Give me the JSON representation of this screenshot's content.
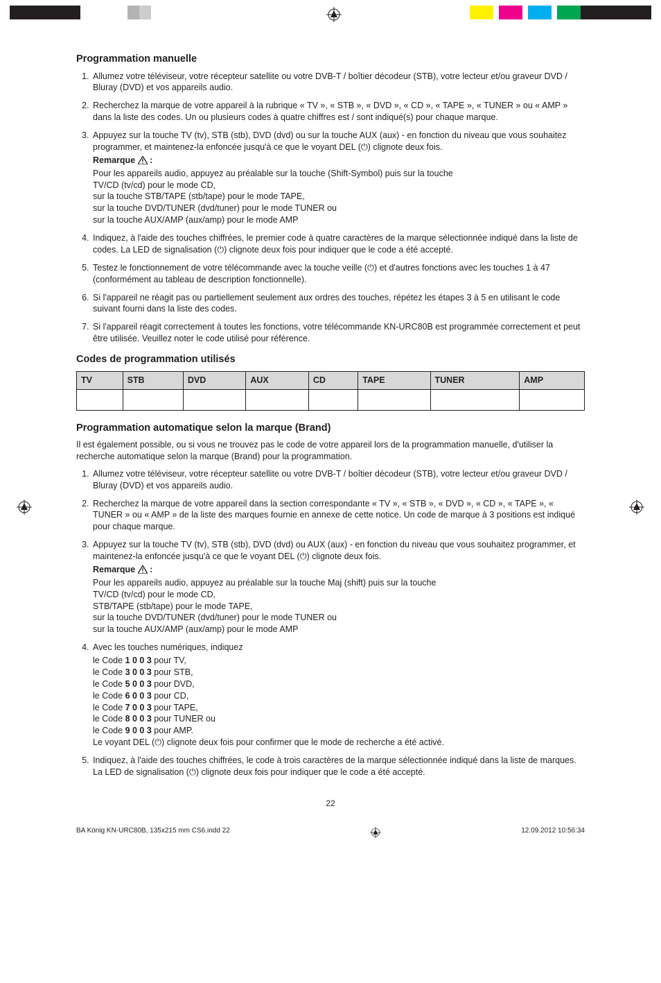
{
  "registration": {
    "left_colors": [
      "#231f20",
      "#231f20",
      "#231f20",
      "#ffffff",
      "#ffffff",
      "#b3b3b3",
      "#cccccc",
      "#ffffff",
      "#ffffff"
    ],
    "right_colors": [
      "#fff200",
      "#ffffff",
      "#ec008c",
      "#ffffff",
      "#00aeef",
      "#ffffff",
      "#00a651",
      "#231f20",
      "#231f20",
      "#231f20"
    ]
  },
  "section1": {
    "heading": "Programmation manuelle",
    "items": [
      "Allumez votre téléviseur, votre récepteur satellite ou votre DVB-T / boîtier décodeur (STB), votre lecteur et/ou graveur DVD / Bluray (DVD) et vos appareils audio.",
      "Recherchez la marque de votre appareil à la rubrique « TV », « STB », « DVD », « CD », « TAPE », « TUNER » ou « AMP » dans la liste des codes. Un ou plusieurs codes à quatre chiffres est / sont indiqué(s) pour chaque marque.",
      "Appuyez sur la touche TV (tv), STB (stb), DVD (dvd) ou sur la touche AUX (aux) - en fonction du niveau que vous souhaitez programmer, et maintenez-la enfoncée jusqu'à ce que le voyant DEL (⏻) clignote deux fois.",
      "Indiquez, à l'aide des touches chiffrées, le premier code à quatre caractères de la marque sélectionnée indiqué dans la liste de codes. La LED de signalisation (⏻) clignote deux fois pour indiquer que le code a été accepté.",
      "Testez le fonctionnement de votre télécommande avec la touche veille (⏻) et d'autres fonctions avec les touches 1 à 47 (conformément au tableau de description fonctionnelle).",
      "Si l'appareil ne réagit pas ou partiellement seulement aux ordres des touches, répétez les étapes 3 à 5 en utilisant le code suivant fourni dans la liste des codes.",
      "Si l'appareil réagit correctement à toutes les fonctions, votre télécommande KN-URC80B est programmée correctement et peut être utilisée. Veuillez noter le code utilisé pour référence."
    ],
    "note_label": "Remarque",
    "note_lines": [
      "Pour les appareils audio, appuyez au préalable sur la touche (Shift-Symbol) puis sur la touche",
      "TV/CD (tv/cd) pour le mode CD,",
      "sur la touche STB/TAPE (stb/tape) pour le mode TAPE,",
      "sur la touche DVD/TUNER (dvd/tuner) pour le mode TUNER ou",
      "sur la touche AUX/AMP (aux/amp) pour le mode AMP"
    ]
  },
  "codes_table": {
    "heading": "Codes de programmation utilisés",
    "headers": [
      "TV",
      "STB",
      "DVD",
      "AUX",
      "CD",
      "TAPE",
      "TUNER",
      "AMP"
    ]
  },
  "section2": {
    "heading": "Programmation automatique selon la marque (Brand)",
    "intro": "Il est également possible, ou si vous ne trouvez pas le code de votre appareil lors de la programmation manuelle, d'utiliser la recherche automatique selon la marque (Brand) pour la programmation.",
    "items": [
      "Allumez votre téléviseur, votre récepteur satellite ou votre DVB-T / boîtier décodeur (STB), votre lecteur et/ou graveur DVD / Bluray (DVD) et vos appareils audio.",
      "Recherchez la marque de votre appareil dans la section correspondante « TV », « STB », « DVD », « CD », « TAPE », « TUNER » ou « AMP » de la liste des marques fournie en annexe de cette notice. Un code de marque à 3 positions est indiqué pour chaque marque.",
      "Appuyez sur la touche TV (tv), STB (stb), DVD (dvd) ou AUX (aux) - en fonction du niveau que vous souhaitez programmer, et maintenez-la enfoncée jusqu'à ce que le voyant DEL (⏻) clignote deux fois.",
      "Avec les touches numériques, indiquez",
      "Indiquez, à l'aide des touches chiffrées, le code à trois caractères de la marque sélectionnée indiqué dans la liste de marques. La LED de signalisation (⏻) clignote deux fois pour indiquer que le code a été accepté."
    ],
    "note_label": "Remarque",
    "note_lines": [
      "Pour les appareils audio, appuyez au préalable sur la touche Maj (shift) puis sur la touche",
      "TV/CD (tv/cd) pour le mode CD,",
      "STB/TAPE (stb/tape) pour le mode TAPE,",
      "sur la touche DVD/TUNER (dvd/tuner) pour le mode TUNER ou",
      "sur la touche AUX/AMP (aux/amp) pour le mode AMP"
    ],
    "codes_list": [
      {
        "pre": "le Code ",
        "code": "1 0 0 3",
        "post": " pour TV,"
      },
      {
        "pre": "le Code ",
        "code": "3 0 0 3",
        "post": " pour STB,"
      },
      {
        "pre": "le Code ",
        "code": "5 0 0 3",
        "post": " pour DVD,"
      },
      {
        "pre": "le Code ",
        "code": "6 0 0 3",
        "post": " pour CD,"
      },
      {
        "pre": "le Code ",
        "code": "7 0 0 3",
        "post": " pour TAPE,"
      },
      {
        "pre": "le Code ",
        "code": "8 0 0 3",
        "post": " pour TUNER ou"
      },
      {
        "pre": "le Code ",
        "code": "9 0 0 3",
        "post": " pour AMP."
      }
    ],
    "codes_footer": "Le voyant DEL (⏻) clignote deux fois pour confirmer que le mode de recherche a été activé."
  },
  "page_number": "22",
  "footer": {
    "left": "BA König KN-URC80B, 135x215 mm CS6.indd   22",
    "right": "12.09.2012   10:56:34"
  },
  "colors": {
    "text": "#231f20",
    "th_bg": "#d8d8d8",
    "border": "#231f20"
  }
}
